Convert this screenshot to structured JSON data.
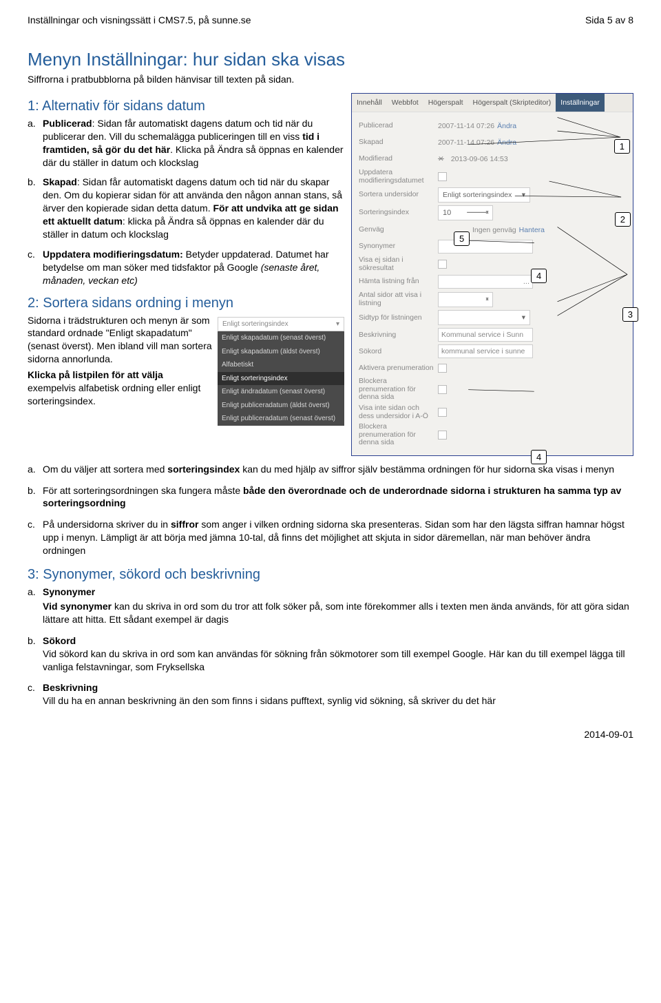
{
  "header": {
    "left": "Inställningar och visningssätt i CMS7.5, på sunne.se",
    "right": "Sida 5 av 8"
  },
  "title": "Menyn Inställningar: hur sidan ska visas",
  "subtitle": "Siffrorna i pratbubblorna på bilden hänvisar till texten på sidan.",
  "sec1": {
    "heading": "1: Alternativ för sidans datum",
    "a": {
      "label": "Publicerad",
      "text": ": Sidan får automatiskt dagens datum och tid när du publicerar den. Vill du schemalägga publiceringen till en viss ",
      "bold2": "tid i framtiden, så gör du det här",
      "text2": ". Klicka på Ändra så öppnas en kalender där du ställer in datum och klockslag"
    },
    "b": {
      "label": "Skapad",
      "text": ": Sidan får automatiskt dagens datum och tid när du skapar den. Om du kopierar sidan för att använda den någon annan stans, så ärver den kopierade sidan detta datum. ",
      "bold2": "För att undvika att ge sidan ett aktuellt datum",
      "text2": ": klicka på Ändra så öppnas en kalender där du ställer in datum och klockslag"
    },
    "c": {
      "label": "Uppdatera modifieringsdatum:",
      "text": " Betyder uppdaterad. Datumet har betydelse om man söker med tidsfaktor på Google ",
      "italic": "(senaste året, månaden, veckan etc)"
    }
  },
  "sec2": {
    "heading": "2: Sortera sidans ordning i menyn",
    "intro1": "Sidorna i trädstrukturen och menyn är som standard ordnade \"Enligt skapadatum\" (senast överst). Men ibland vill man sortera sidorna annorlunda.",
    "intro2a": "Klicka på listpilen för att välja",
    "intro2b": " exempelvis alfabetisk ordning eller enligt sorteringsindex.",
    "dropdown": {
      "head": "Enligt sorteringsindex",
      "items": [
        "Enligt skapadatum (senast överst)",
        "Enligt skapadatum (äldst överst)",
        "Alfabetiskt",
        "Enligt sorteringsindex",
        "Enligt ändradatum (senast överst)",
        "Enligt publiceradatum (äldst överst)",
        "Enligt publiceradatum (senast överst)"
      ],
      "selectedIndex": 3
    },
    "a": {
      "t1": "Om du väljer att sortera med ",
      "b1": "sorteringsindex",
      "t2": " kan du med hjälp av siffror själv bestämma ordningen för hur sidorna ska visas i menyn"
    },
    "b": {
      "t1": "För att sorteringsordningen ska fungera måste ",
      "b1": "både den överordnade och de underordnade sidorna i strukturen ha samma typ av sorteringsordning"
    },
    "c": {
      "t1": "På undersidorna skriver du in ",
      "b1": "siffror",
      "t2": " som anger i vilken ordning sidorna ska presenteras. Sidan som har den lägsta siffran hamnar högst upp i menyn. Lämpligt är att börja med jämna 10-tal, då finns det möjlighet att skjuta in sidor däremellan, när man behöver ändra ordningen"
    }
  },
  "sec3": {
    "heading": "3: Synonymer, sökord och beskrivning",
    "a": {
      "label": "Synonymer",
      "t1": "Vid synonymer",
      "t2": " kan du skriva in ord som du tror att folk söker på, som inte förekommer alls i texten men ända används, för att göra sidan lättare att hitta. Ett sådant exempel är dagis"
    },
    "b": {
      "label": "Sökord",
      "t1": "Vid sökord kan du skriva in ord som kan användas för sökning från sökmotorer som till exempel Google. Här kan du till exempel lägga till vanliga felstavningar, som Fryksellska"
    },
    "c": {
      "label": "Beskrivning",
      "t1": "Vill du ha en annan beskrivning än den som finns i sidans pufftext, synlig vid sökning, så skriver du det här"
    }
  },
  "cms": {
    "tabs": [
      "Innehåll",
      "Webbfot",
      "Högerspalt",
      "Högerspalt (Skripteditor)",
      "Inställningar"
    ],
    "activeTab": 4,
    "rows": {
      "publicerad_l": "Publicerad",
      "publicerad_v": "2007-11-14 07:26",
      "andra": "Ändra",
      "skapad_l": "Skapad",
      "skapad_v": "2007-11-14 07:26",
      "modifierad_l": "Modifierad",
      "modifierad_v": "2013-09-06 14:53",
      "uppdatera_l": "Uppdatera modifieringsdatumet",
      "sortera_l": "Sortera undersidor",
      "sortera_v": "Enligt sorteringsindex",
      "sortindex_l": "Sorteringsindex",
      "sortindex_v": "10",
      "genvag_l": "Genväg",
      "genvag_v": "Ingen genväg",
      "hantera": "Hantera",
      "synonymer_l": "Synonymer",
      "visa_ej_l": "Visa ej sidan i sökresultat",
      "hamta_l": "Hämta listning från",
      "antal_l": "Antal sidor att visa i listning",
      "sidtyp_l": "Sidtyp för listningen",
      "beskrivning_l": "Beskrivning",
      "beskrivning_v": "Kommunal service i Sunn",
      "sokord_l": "Sökord",
      "sokord_v": "kommunal service i sunne",
      "aktivera_l": "Aktivera prenumeration",
      "blockera1_l": "Blockera prenumeration för denna sida",
      "visainte_l": "Visa inte sidan och dess undersidor i A-Ö",
      "blockera2_l": "Blockera prenumeration för denna sida"
    }
  },
  "callouts": {
    "c1": "1",
    "c2": "2",
    "c3": "3",
    "c4a": "4",
    "c4b": "4",
    "c5": "5"
  },
  "footer": "2014-09-01"
}
